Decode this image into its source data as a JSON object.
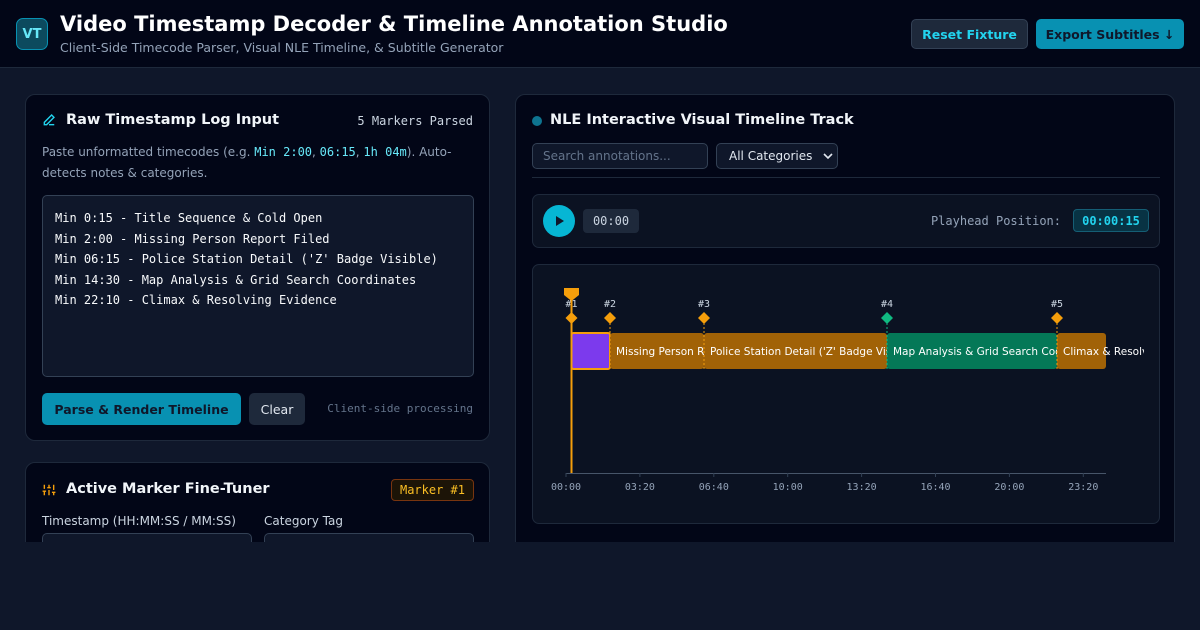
{
  "header": {
    "logo": "VT",
    "title": "Video Timestamp Decoder & Timeline Annotation Studio",
    "subtitle": "Client-Side Timecode Parser, Visual NLE Timeline, & Subtitle Generator",
    "buttons": [
      "Reset Fixture",
      "Export Subtitles ↓"
    ]
  },
  "input_panel": {
    "title": "Raw Timestamp Log Input",
    "status": "5 Markers Parsed",
    "hint": [
      "Paste unformatted timecodes (e.g. ",
      "Min 2:00",
      ", ",
      "06:15",
      ", ",
      "1h 04m",
      "). Auto-detects notes & categories."
    ],
    "log_lines": [
      "Min 0:15 - Title Sequence & Cold Open",
      "Min 2:00 - Missing Person Report Filed",
      "Min 06:15 - Police Station Detail ('Z' Badge Visible)",
      "Min 14:30 - Map Analysis & Grid Search Coordinates",
      "Min 22:10 - Climax & Resolving Evidence"
    ],
    "buttons": [
      "Parse & Render Timeline",
      "Clear"
    ],
    "note": "Client-side processing"
  },
  "tuner_panel": {
    "title": "Active Marker Fine-Tuner",
    "badge": "Marker #1",
    "fields": [
      "Timestamp (HH:MM:SS / MM:SS)",
      "Category Tag"
    ]
  },
  "timeline_panel": {
    "title": "NLE Interactive Visual Timeline Track",
    "search_placeholder": "Search annotations...",
    "category_filter": "All Categories",
    "current_time": "00:00",
    "playhead_label": "Playhead Position:",
    "playhead_value": "00:00:15",
    "markers": [
      {
        "label": "#1",
        "color": "#f59e0b"
      },
      {
        "label": "#2",
        "color": "#f59e0b"
      },
      {
        "label": "#3",
        "color": "#f59e0b"
      },
      {
        "label": "#4",
        "color": "#10b981"
      },
      {
        "label": "#5",
        "color": "#f59e0b"
      }
    ],
    "segments": [
      {
        "color": "#7c3aed"
      },
      {
        "label": "Missing Person Report Filed",
        "color": "#a16207"
      },
      {
        "label": "Police Station Detail ('Z' Badge Visible)",
        "color": "#a16207"
      },
      {
        "label": "Map Analysis & Grid Search Coordinates",
        "color": "#047857"
      },
      {
        "label": "Climax & Resolving Evidence",
        "color": "#a16207"
      }
    ],
    "axis_ticks": [
      "00:00",
      "03:20",
      "06:40",
      "10:00",
      "13:20",
      "16:40",
      "20:00",
      "23:20"
    ]
  }
}
